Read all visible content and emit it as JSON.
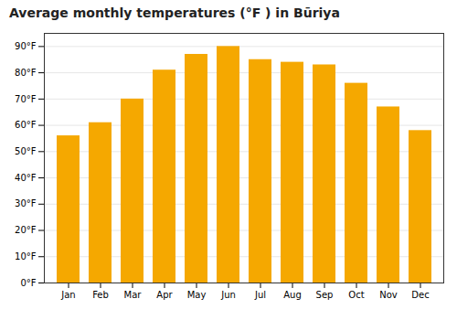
{
  "chart_data": {
    "type": "bar",
    "title": "Average monthly temperatures (°F ) in Būriya",
    "categories": [
      "Jan",
      "Feb",
      "Mar",
      "Apr",
      "May",
      "Jun",
      "Jul",
      "Aug",
      "Sep",
      "Oct",
      "Nov",
      "Dec"
    ],
    "values": [
      56,
      61,
      70,
      81,
      87,
      90,
      85,
      84,
      83,
      76,
      67,
      58
    ],
    "color": "#F5A800",
    "ylim": [
      0,
      95
    ],
    "yticks": [
      {
        "value": 0,
        "label": "0°F"
      },
      {
        "value": 10,
        "label": "10°F"
      },
      {
        "value": 20,
        "label": "20°F"
      },
      {
        "value": 30,
        "label": "30°F"
      },
      {
        "value": 40,
        "label": "40°F"
      },
      {
        "value": 50,
        "label": "50°F"
      },
      {
        "value": 60,
        "label": "60°F"
      },
      {
        "value": 70,
        "label": "70°F"
      },
      {
        "value": 80,
        "label": "80°F"
      },
      {
        "value": 90,
        "label": "90°F"
      }
    ],
    "grid": true
  }
}
